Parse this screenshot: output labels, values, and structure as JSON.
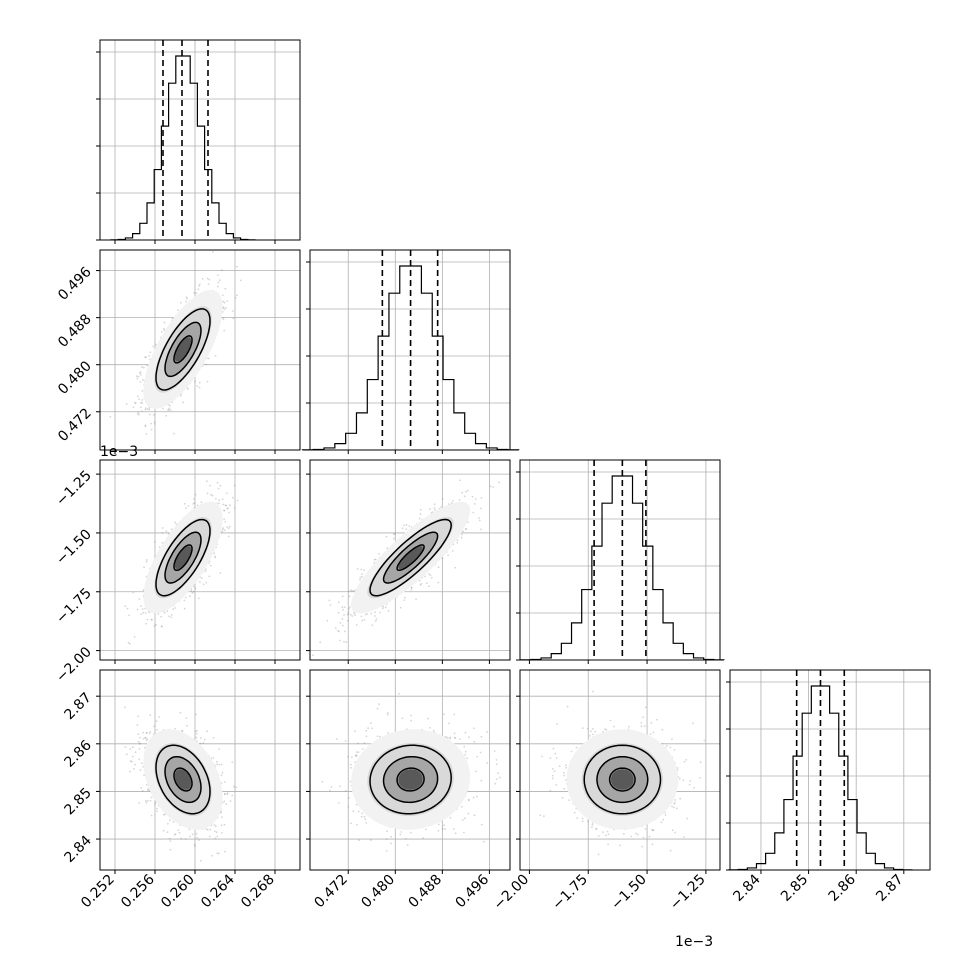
{
  "chart_data": {
    "type": "corner",
    "parameters": [
      {
        "range": [
          0.2505,
          0.2705
        ],
        "ticks": [
          0.252,
          0.256,
          0.26,
          0.264,
          0.268
        ],
        "tick_labels": [
          "0.252",
          "0.256",
          "0.260",
          "0.264",
          "0.268"
        ],
        "quantiles": [
          0.2568,
          0.2587,
          0.2613
        ],
        "mean": 0.2588,
        "sd": 0.0018,
        "offset_text": ""
      },
      {
        "range": [
          0.4655,
          0.4995
        ],
        "ticks": [
          0.472,
          0.48,
          0.488,
          0.496
        ],
        "tick_labels": [
          "0.472",
          "0.480",
          "0.488",
          "0.496"
        ],
        "quantiles": [
          0.4778,
          0.4826,
          0.4872
        ],
        "mean": 0.4826,
        "sd": 0.0046,
        "offset_text": ""
      },
      {
        "range": [
          -2.04,
          -1.19
        ],
        "ticks": [
          -2.0,
          -1.75,
          -1.5,
          -1.25
        ],
        "tick_labels": [
          "−2.00",
          "−1.75",
          "−1.50",
          "−1.25"
        ],
        "quantiles": [
          -1.725,
          -1.605,
          -1.505
        ],
        "mean": -1.605,
        "sd": 0.108,
        "offset_text": "1e−3"
      },
      {
        "range": [
          2.8335,
          2.8755
        ],
        "ticks": [
          2.84,
          2.85,
          2.86,
          2.87
        ],
        "tick_labels": [
          "2.84",
          "2.85",
          "2.86",
          "2.87"
        ],
        "quantiles": [
          2.8475,
          2.8525,
          2.8575
        ],
        "mean": 2.8525,
        "sd": 0.0048,
        "offset_text": ""
      }
    ],
    "correlations": [
      [
        0,
        1,
        0.7
      ],
      [
        0,
        2,
        0.7
      ],
      [
        0,
        3,
        -0.35
      ],
      [
        1,
        2,
        0.85
      ],
      [
        1,
        3,
        0.05
      ],
      [
        2,
        3,
        0.0
      ]
    ],
    "histogram_bins": 20,
    "contour_levels": [
      0.5,
      1.0,
      1.5
    ],
    "grid": true,
    "colors": {
      "ink": "#000000",
      "grid": "#b0b0b0",
      "scatter": "#8a8a8a"
    }
  }
}
